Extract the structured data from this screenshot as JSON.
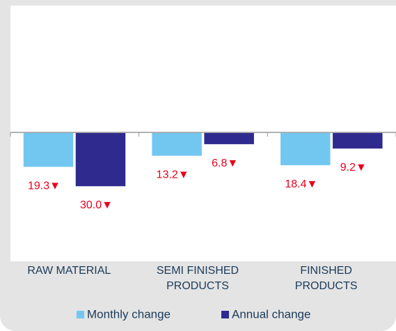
{
  "chart_data": {
    "type": "bar",
    "categories": [
      "RAW MATERIAL",
      "SEMI FINISHED PRODUCTS",
      "FINISHED PRODUCTS"
    ],
    "series": [
      {
        "name": "Monthly change",
        "color": "#72c7f1",
        "values": [
          -19.3,
          -13.2,
          -18.4
        ],
        "value_labels": [
          "19.3▼",
          "13.2▼",
          "18.4▼"
        ]
      },
      {
        "name": "Annual change",
        "color": "#2e2a8e",
        "values": [
          -30.0,
          -6.8,
          -9.2
        ],
        "value_labels": [
          "30.0▼",
          "6.8▼",
          "9.2▼"
        ]
      }
    ],
    "ylim": [
      -70,
      70
    ],
    "label_color": "#e8001c"
  }
}
